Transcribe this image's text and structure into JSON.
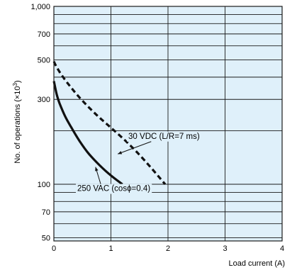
{
  "chart_data": {
    "type": "line",
    "title": "",
    "xlabel": "Load current (A)",
    "ylabel_main": "No. of operations (×10",
    "ylabel_sup": "3",
    "ylabel_end": ")",
    "xlim": [
      0,
      4
    ],
    "ylim": [
      48,
      1000
    ],
    "yscale": "log",
    "grid": true,
    "x_ticks": [
      {
        "value": 0,
        "label": "0"
      },
      {
        "value": 1,
        "label": "1"
      },
      {
        "value": 2,
        "label": "2"
      },
      {
        "value": 3,
        "label": "3"
      },
      {
        "value": 4,
        "label": "4"
      }
    ],
    "y_ticks": [
      {
        "value": 50,
        "label": "50"
      },
      {
        "value": 70,
        "label": "70"
      },
      {
        "value": 100,
        "label": "100"
      },
      {
        "value": 300,
        "label": "300"
      },
      {
        "value": 500,
        "label": "500"
      },
      {
        "value": 700,
        "label": "700"
      },
      {
        "value": 1000,
        "label": "1,000"
      }
    ],
    "y_gridlines": [
      50,
      60,
      70,
      80,
      90,
      100,
      200,
      300,
      400,
      500,
      600,
      700,
      800,
      900,
      1000
    ],
    "series": [
      {
        "style": "solid",
        "points": [
          [
            0,
            380
          ],
          [
            0.05,
            320
          ],
          [
            0.1,
            285
          ],
          [
            0.2,
            240
          ],
          [
            0.3,
            210
          ],
          [
            0.45,
            175
          ],
          [
            0.6,
            150
          ],
          [
            0.8,
            128
          ],
          [
            1.0,
            112
          ],
          [
            1.2,
            100
          ]
        ]
      },
      {
        "style": "dashed",
        "points": [
          [
            0,
            490
          ],
          [
            0.05,
            455
          ],
          [
            0.15,
            405
          ],
          [
            0.3,
            350
          ],
          [
            0.5,
            295
          ],
          [
            0.75,
            245
          ],
          [
            1.0,
            208
          ],
          [
            1.3,
            170
          ],
          [
            1.6,
            135
          ],
          [
            1.95,
            100
          ]
        ]
      }
    ],
    "annotations": [
      {
        "text": "30 VDC (L/R=7 ms)",
        "x": 1.93,
        "y": 187,
        "arrow_to": [
          1.12,
          148
        ]
      },
      {
        "text": "250 VAC (cosϕ=0.4)",
        "x": 1.05,
        "y": 95,
        "arrow_to": [
          0.73,
          125
        ]
      }
    ],
    "colors": {
      "background": "#dff0fa",
      "grid": "#1a1a1a",
      "line": "#111111"
    }
  }
}
